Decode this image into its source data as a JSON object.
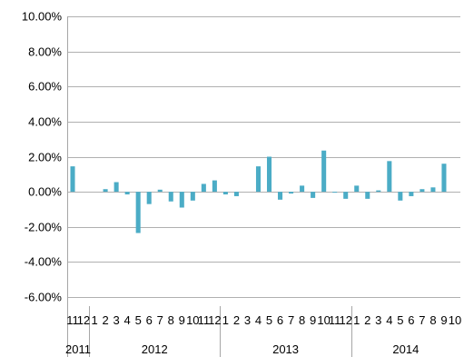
{
  "chart_data": {
    "type": "bar",
    "title": "",
    "xlabel": "",
    "ylabel": "",
    "ylim": [
      -0.06,
      0.1
    ],
    "y_ticks": [
      "10.00%",
      "8.00%",
      "6.00%",
      "4.00%",
      "2.00%",
      "0.00%",
      "-2.00%",
      "-4.00%",
      "-6.00%"
    ],
    "y_tick_values": [
      0.1,
      0.08,
      0.06,
      0.04,
      0.02,
      0.0,
      -0.02,
      -0.04,
      -0.06
    ],
    "grid": "horizontal",
    "legend": "none",
    "bar_color": "#4bacc6",
    "categories": [
      "11",
      "12",
      "1",
      "2",
      "3",
      "4",
      "5",
      "6",
      "7",
      "8",
      "9",
      "10",
      "11",
      "12",
      "1",
      "2",
      "3",
      "4",
      "5",
      "6",
      "7",
      "8",
      "9",
      "10",
      "11",
      "12",
      "1",
      "2",
      "3",
      "4",
      "5",
      "6",
      "7",
      "8",
      "9",
      "10"
    ],
    "years": [
      {
        "label": "2011",
        "start": 0,
        "end": 2
      },
      {
        "label": "2012",
        "start": 2,
        "end": 14
      },
      {
        "label": "2013",
        "start": 14,
        "end": 26
      },
      {
        "label": "2014",
        "start": 26,
        "end": 36
      }
    ],
    "values": [
      0.0145,
      0.0,
      0.0,
      0.0015,
      0.0055,
      -0.0015,
      -0.0235,
      -0.007,
      0.0012,
      -0.0055,
      -0.009,
      -0.005,
      0.0045,
      0.0065,
      -0.0015,
      -0.0025,
      0.0,
      0.0145,
      0.02,
      -0.0045,
      -0.001,
      0.0035,
      -0.0035,
      0.0235,
      -0.0005,
      -0.004,
      0.0035,
      -0.004,
      0.0008,
      0.0175,
      -0.005,
      -0.0025,
      0.0015,
      0.0025,
      0.016,
      0.0
    ]
  }
}
